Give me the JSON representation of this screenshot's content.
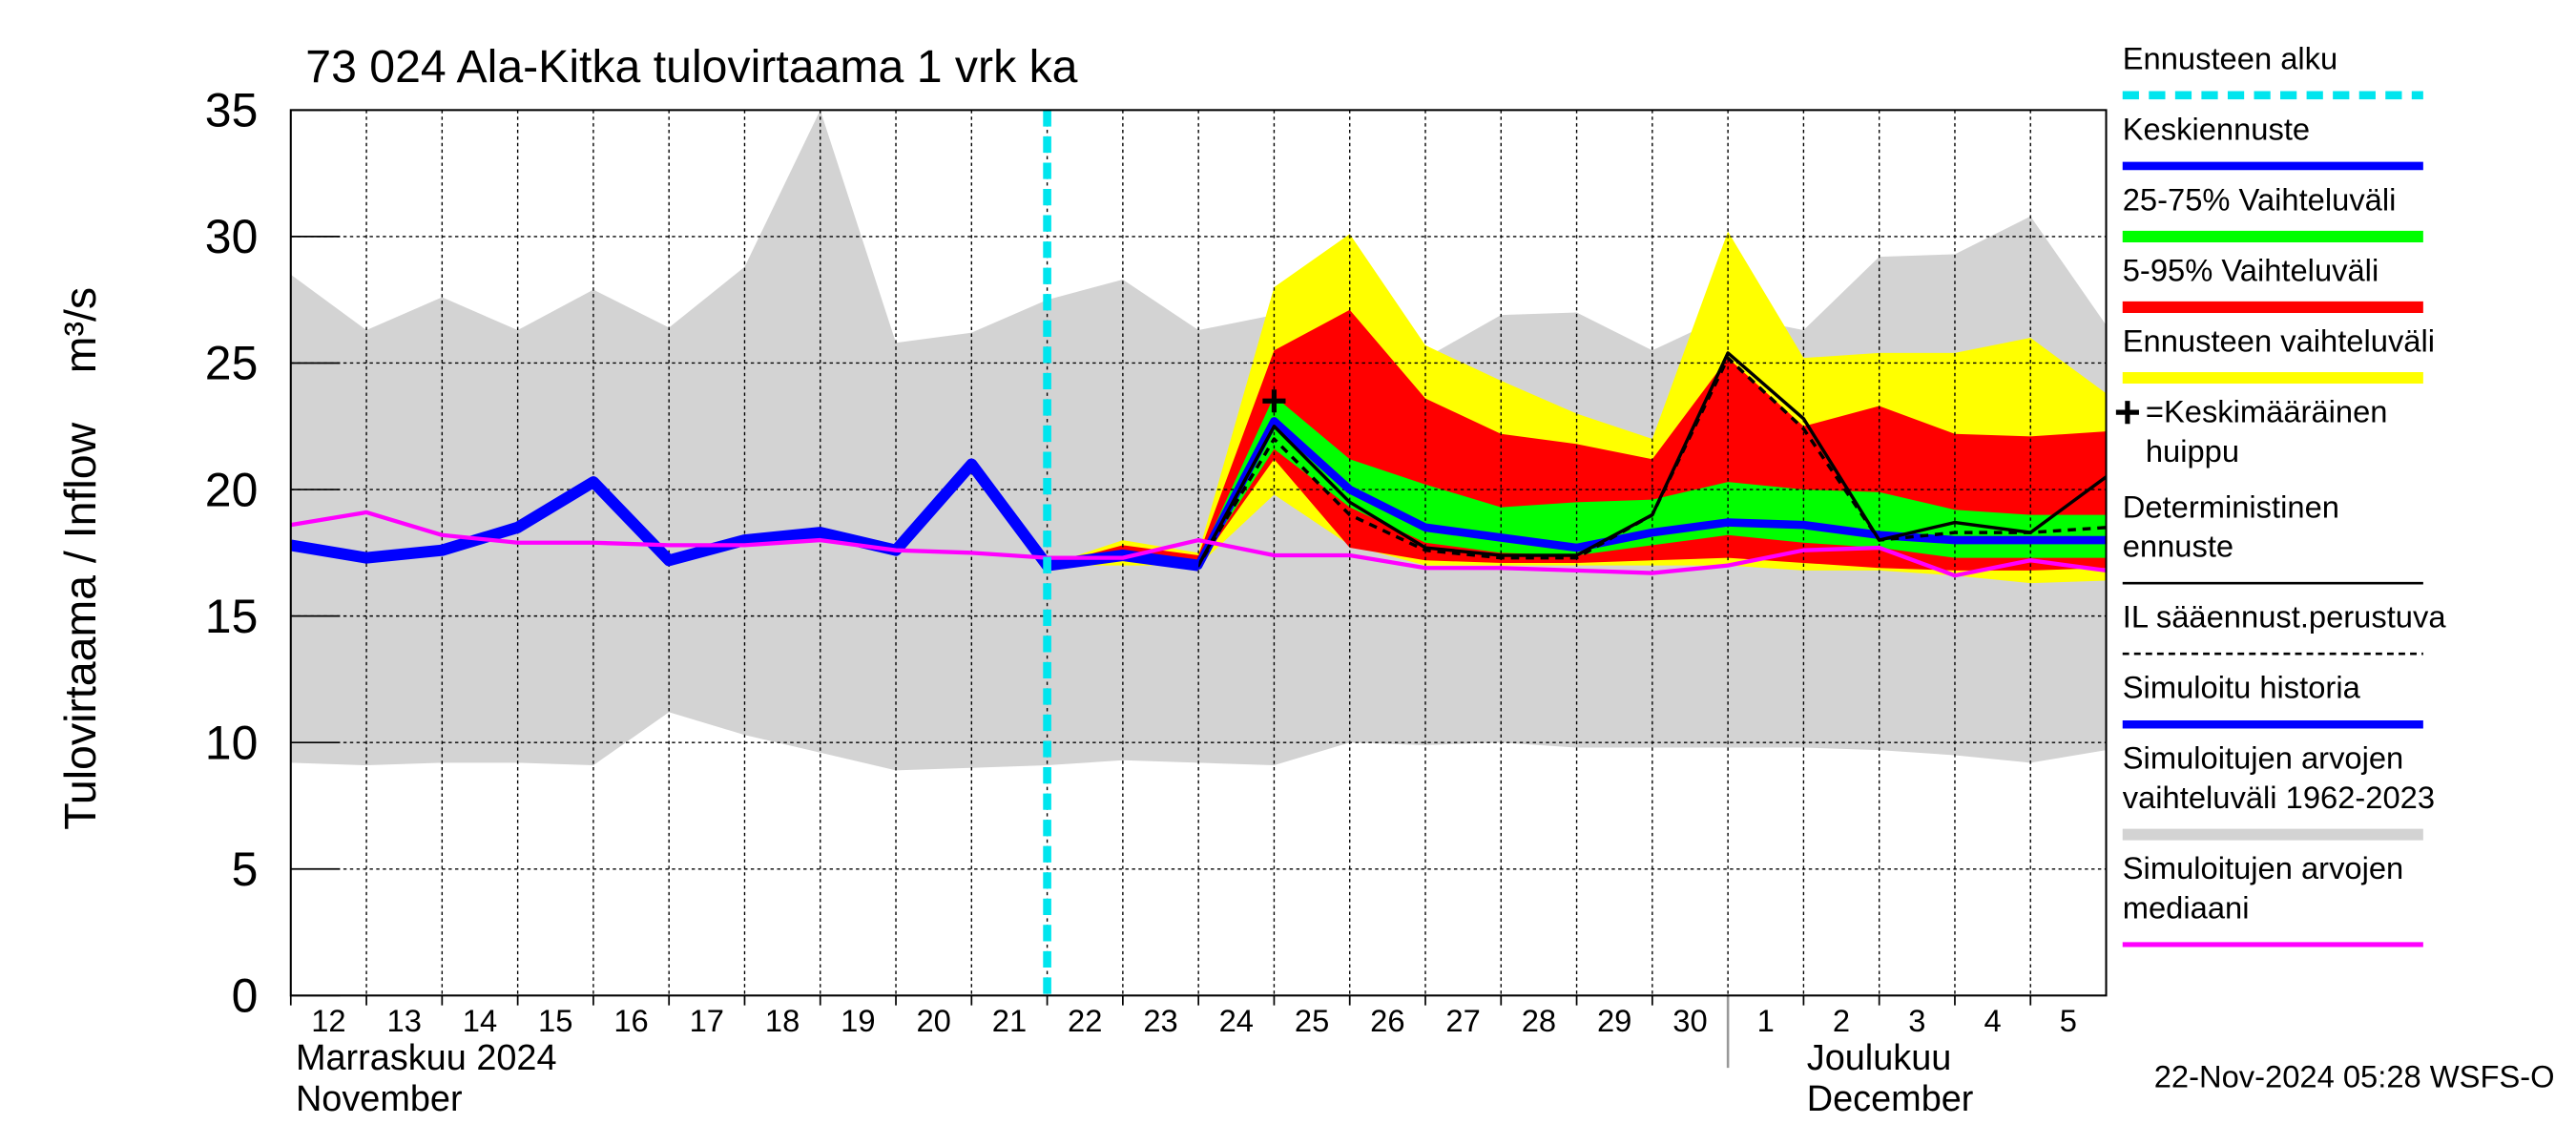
{
  "chart_data": {
    "type": "line",
    "title": "73 024 Ala-Kitka tulovirtaama 1 vrk ka",
    "y_label": "Tulovirtaama / Inflow    m³/s",
    "footer": "22-Nov-2024 05:28 WSFS-O",
    "x": [
      "2024-11-12",
      "2024-11-13",
      "2024-11-14",
      "2024-11-15",
      "2024-11-16",
      "2024-11-17",
      "2024-11-18",
      "2024-11-19",
      "2024-11-20",
      "2024-11-21",
      "2024-11-22",
      "2024-11-23",
      "2024-11-24",
      "2024-11-25",
      "2024-11-26",
      "2024-11-27",
      "2024-11-28",
      "2024-11-29",
      "2024-11-30",
      "2024-12-01",
      "2024-12-02",
      "2024-12-03",
      "2024-12-04",
      "2024-12-05",
      "2024-12-06"
    ],
    "xlim": [
      "2024-11-12",
      "2024-12-06"
    ],
    "xticks": [
      {
        "value": "2024-11-12",
        "label": "12"
      },
      {
        "value": "2024-11-13",
        "label": "13"
      },
      {
        "value": "2024-11-14",
        "label": "14"
      },
      {
        "value": "2024-11-15",
        "label": "15"
      },
      {
        "value": "2024-11-16",
        "label": "16"
      },
      {
        "value": "2024-11-17",
        "label": "17"
      },
      {
        "value": "2024-11-18",
        "label": "18"
      },
      {
        "value": "2024-11-19",
        "label": "19"
      },
      {
        "value": "2024-11-20",
        "label": "20"
      },
      {
        "value": "2024-11-21",
        "label": "21"
      },
      {
        "value": "2024-11-22",
        "label": "22"
      },
      {
        "value": "2024-11-23",
        "label": "23"
      },
      {
        "value": "2024-11-24",
        "label": "24"
      },
      {
        "value": "2024-11-25",
        "label": "25"
      },
      {
        "value": "2024-11-26",
        "label": "26"
      },
      {
        "value": "2024-11-27",
        "label": "27"
      },
      {
        "value": "2024-11-28",
        "label": "28"
      },
      {
        "value": "2024-11-29",
        "label": "29"
      },
      {
        "value": "2024-11-30",
        "label": "30"
      },
      {
        "value": "2024-12-01",
        "label": "1"
      },
      {
        "value": "2024-12-02",
        "label": "2"
      },
      {
        "value": "2024-12-03",
        "label": "3"
      },
      {
        "value": "2024-12-04",
        "label": "4"
      },
      {
        "value": "2024-12-05",
        "label": "5"
      }
    ],
    "x_group_labels": [
      {
        "value": "2024-11-12",
        "label": "Marraskuu 2024",
        "sublabel": "November"
      },
      {
        "value": "2024-12-01",
        "label": "Joulukuu",
        "sublabel": "December"
      }
    ],
    "ylim": [
      0,
      35
    ],
    "yticks": [
      0,
      5,
      10,
      15,
      20,
      25,
      30,
      35
    ],
    "grid": true,
    "series": [
      {
        "name": "Ennusteen alku",
        "style": "vline",
        "color": "#00e5ee",
        "x": "2024-11-22"
      },
      {
        "name": "Keskiennuste",
        "style": "line",
        "color": "#0000ff",
        "width": 5,
        "values": [
          null,
          null,
          null,
          null,
          null,
          null,
          null,
          null,
          null,
          null,
          17.0,
          17.4,
          17.0,
          22.7,
          20.0,
          18.5,
          18.1,
          17.7,
          18.3,
          18.7,
          18.6,
          18.2,
          18.0,
          18.0,
          18.0
        ]
      },
      {
        "name": "25-75% Vaihteluväli",
        "style": "band",
        "color": "#00ff00",
        "upper": [
          null,
          null,
          null,
          null,
          null,
          null,
          null,
          null,
          null,
          null,
          17.0,
          17.6,
          17.2,
          23.7,
          21.2,
          20.2,
          19.3,
          19.5,
          19.6,
          20.3,
          20.0,
          19.9,
          19.2,
          19.0,
          19.0
        ],
        "lower": [
          null,
          null,
          null,
          null,
          null,
          null,
          null,
          null,
          null,
          null,
          17.0,
          17.3,
          17.0,
          21.6,
          19.3,
          17.9,
          17.5,
          17.4,
          17.8,
          18.2,
          17.9,
          17.7,
          17.3,
          17.3,
          17.3
        ]
      },
      {
        "name": "5-95% Vaihteluväli",
        "style": "band",
        "color": "#ff0000",
        "upper": [
          null,
          null,
          null,
          null,
          null,
          null,
          null,
          null,
          null,
          null,
          17.0,
          17.8,
          17.4,
          25.5,
          27.1,
          23.6,
          22.2,
          21.8,
          21.2,
          25.2,
          22.5,
          23.3,
          22.2,
          22.1,
          22.3
        ],
        "lower": [
          null,
          null,
          null,
          null,
          null,
          null,
          null,
          null,
          null,
          null,
          17.0,
          17.2,
          17.0,
          21.2,
          17.7,
          17.2,
          17.1,
          17.1,
          17.2,
          17.3,
          17.1,
          16.9,
          16.8,
          16.8,
          16.9
        ]
      },
      {
        "name": "Ennusteen vaihteluväli",
        "style": "band",
        "color": "#ffff00",
        "upper": [
          null,
          null,
          null,
          null,
          null,
          null,
          null,
          null,
          null,
          null,
          17.0,
          18.0,
          17.5,
          28.0,
          30.1,
          25.7,
          24.3,
          23.0,
          22.0,
          30.2,
          25.2,
          25.4,
          25.4,
          26.0,
          23.8
        ],
        "lower": [
          null,
          null,
          null,
          null,
          null,
          null,
          null,
          null,
          null,
          null,
          17.0,
          17.0,
          17.0,
          19.8,
          17.8,
          17.0,
          17.0,
          17.0,
          17.0,
          17.0,
          16.8,
          16.8,
          16.6,
          16.3,
          16.4
        ]
      },
      {
        "name": "=Keskimääräinen huippu",
        "style": "peak",
        "color": "#000000",
        "x": "2024-11-25",
        "value": 23.5
      },
      {
        "name": "Deterministinen ennuste",
        "style": "line",
        "color": "#000000",
        "width": 2,
        "values": [
          null,
          null,
          null,
          null,
          null,
          null,
          null,
          null,
          null,
          null,
          17.0,
          17.5,
          17.0,
          22.5,
          19.5,
          17.7,
          17.4,
          17.4,
          19.0,
          25.4,
          22.8,
          18.0,
          18.7,
          18.3,
          20.5
        ]
      },
      {
        "name": "IL sääennust.perustuva",
        "style": "dashed",
        "color": "#000000",
        "width": 2,
        "values": [
          null,
          null,
          null,
          null,
          null,
          null,
          null,
          null,
          null,
          null,
          17.0,
          17.4,
          17.0,
          22.0,
          19.0,
          17.6,
          17.3,
          17.3,
          19.0,
          25.2,
          22.4,
          18.0,
          18.3,
          18.3,
          18.5
        ]
      },
      {
        "name": "Simuloitu historia",
        "style": "line",
        "color": "#0000ff",
        "width": 7,
        "values": [
          17.8,
          17.3,
          17.6,
          18.5,
          20.3,
          17.2,
          18.0,
          18.3,
          17.6,
          21.0,
          17.0,
          17.4,
          17.0,
          null,
          null,
          null,
          null,
          null,
          null,
          null,
          null,
          null,
          null,
          null,
          null
        ]
      },
      {
        "name": "Simuloitujen arvojen vaihteluväli 1962-2023",
        "style": "band",
        "color": "#d3d3d3",
        "upper": [
          28.5,
          26.3,
          27.6,
          26.3,
          27.9,
          26.4,
          28.8,
          35,
          25.8,
          26.2,
          27.5,
          28.3,
          26.3,
          26.9,
          28.5,
          25.2,
          26.9,
          27.0,
          25.5,
          26.9,
          26.3,
          29.2,
          29.3,
          30.8,
          26.5
        ],
        "lower": [
          9.2,
          9.1,
          9.2,
          9.2,
          9.1,
          11.2,
          10.3,
          9.6,
          8.9,
          9.0,
          9.1,
          9.3,
          9.2,
          9.1,
          10.0,
          9.9,
          10.0,
          9.8,
          9.8,
          9.8,
          9.8,
          9.7,
          9.5,
          9.2,
          9.7
        ]
      },
      {
        "name": "Simuloitujen arvojen mediaani",
        "style": "line",
        "color": "#ff00ff",
        "width": 2.5,
        "values": [
          18.6,
          19.1,
          18.2,
          17.9,
          17.9,
          17.8,
          17.8,
          18.0,
          17.6,
          17.5,
          17.3,
          17.3,
          18.0,
          17.4,
          17.4,
          16.9,
          16.9,
          16.8,
          16.7,
          17.0,
          17.6,
          17.7,
          16.6,
          17.2,
          16.8
        ]
      }
    ]
  }
}
